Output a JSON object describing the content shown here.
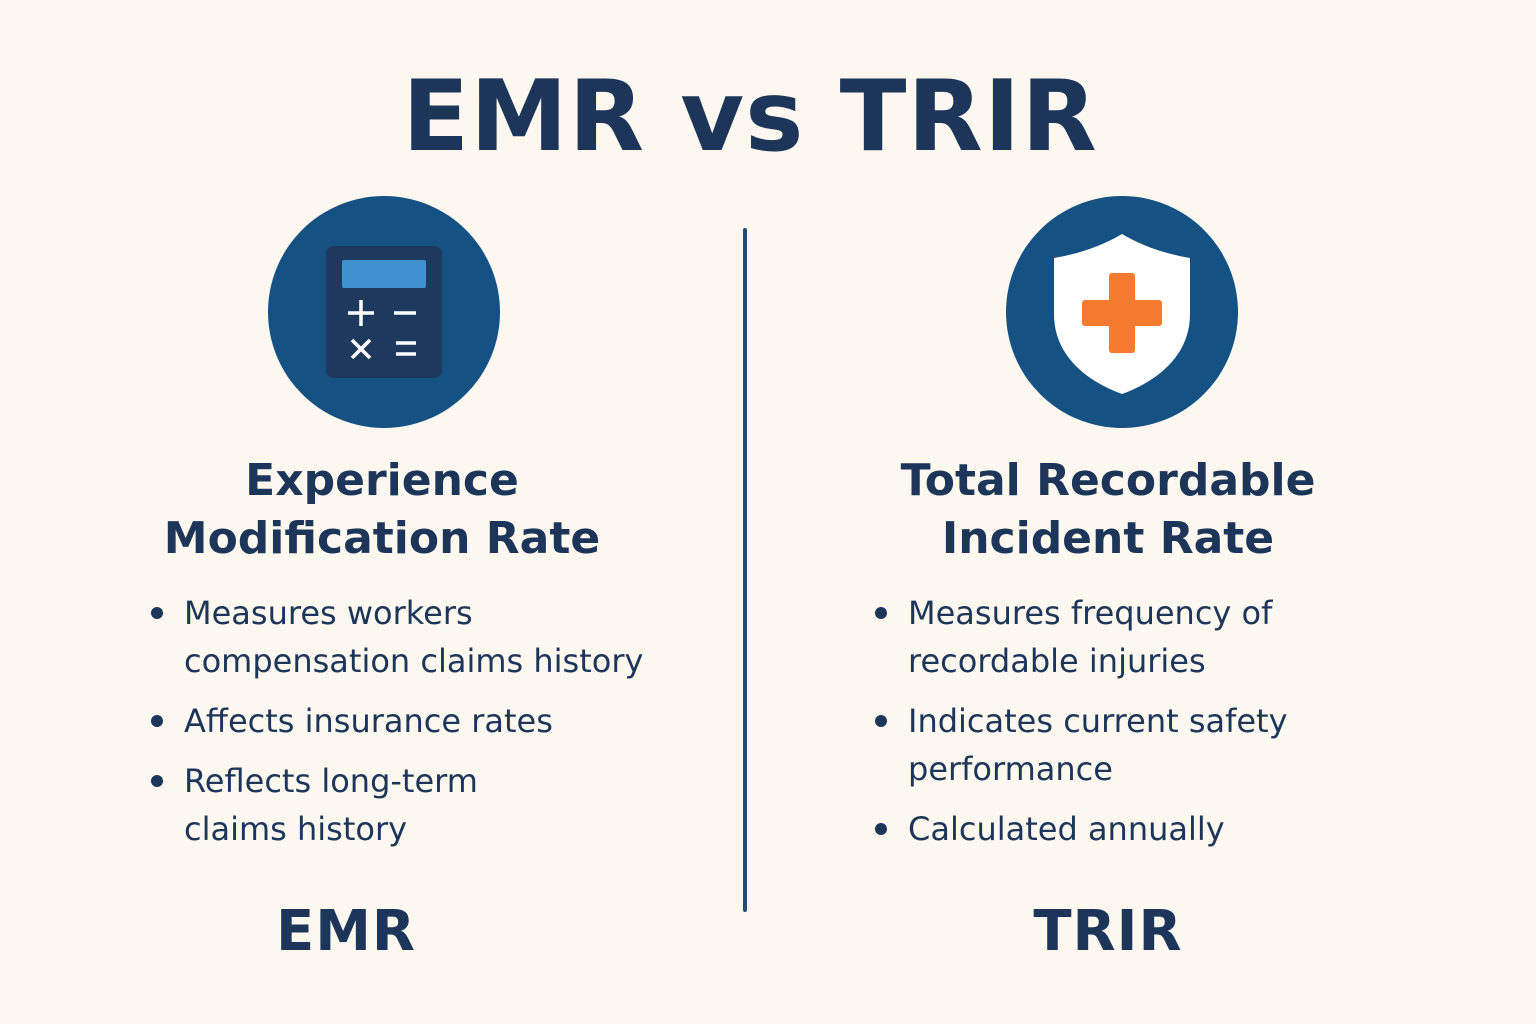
{
  "title": "EMR vs TRIR",
  "colors": {
    "background": "#fcf8ef",
    "text": "#1c3558",
    "circle": "#155283",
    "calculator_body": "#1d3a5e",
    "calculator_screen": "#3f91cf",
    "cross": "#f47a2f",
    "shield": "#ffffff"
  },
  "left": {
    "icon": "calculator-icon",
    "title_line1": "Experience",
    "title_line2": "Modification Rate",
    "bullets": [
      {
        "line1": "Measures workers",
        "line2": "compensation claims history"
      },
      {
        "line1": "Affects insurance rates",
        "line2": ""
      },
      {
        "line1": "Reflects long-term",
        "line2": "claims history"
      }
    ],
    "abbreviation": "EMR"
  },
  "right": {
    "icon": "shield-medical-icon",
    "title_line1": "Total Recordable",
    "title_line2": "Incident Rate",
    "bullets": [
      {
        "line1": "Measures frequency of",
        "line2": "recordable injuries"
      },
      {
        "line1": "Indicates current safety",
        "line2": "performance"
      },
      {
        "line1": "Calculated annually",
        "line2": ""
      }
    ],
    "abbreviation": "TRIR"
  }
}
